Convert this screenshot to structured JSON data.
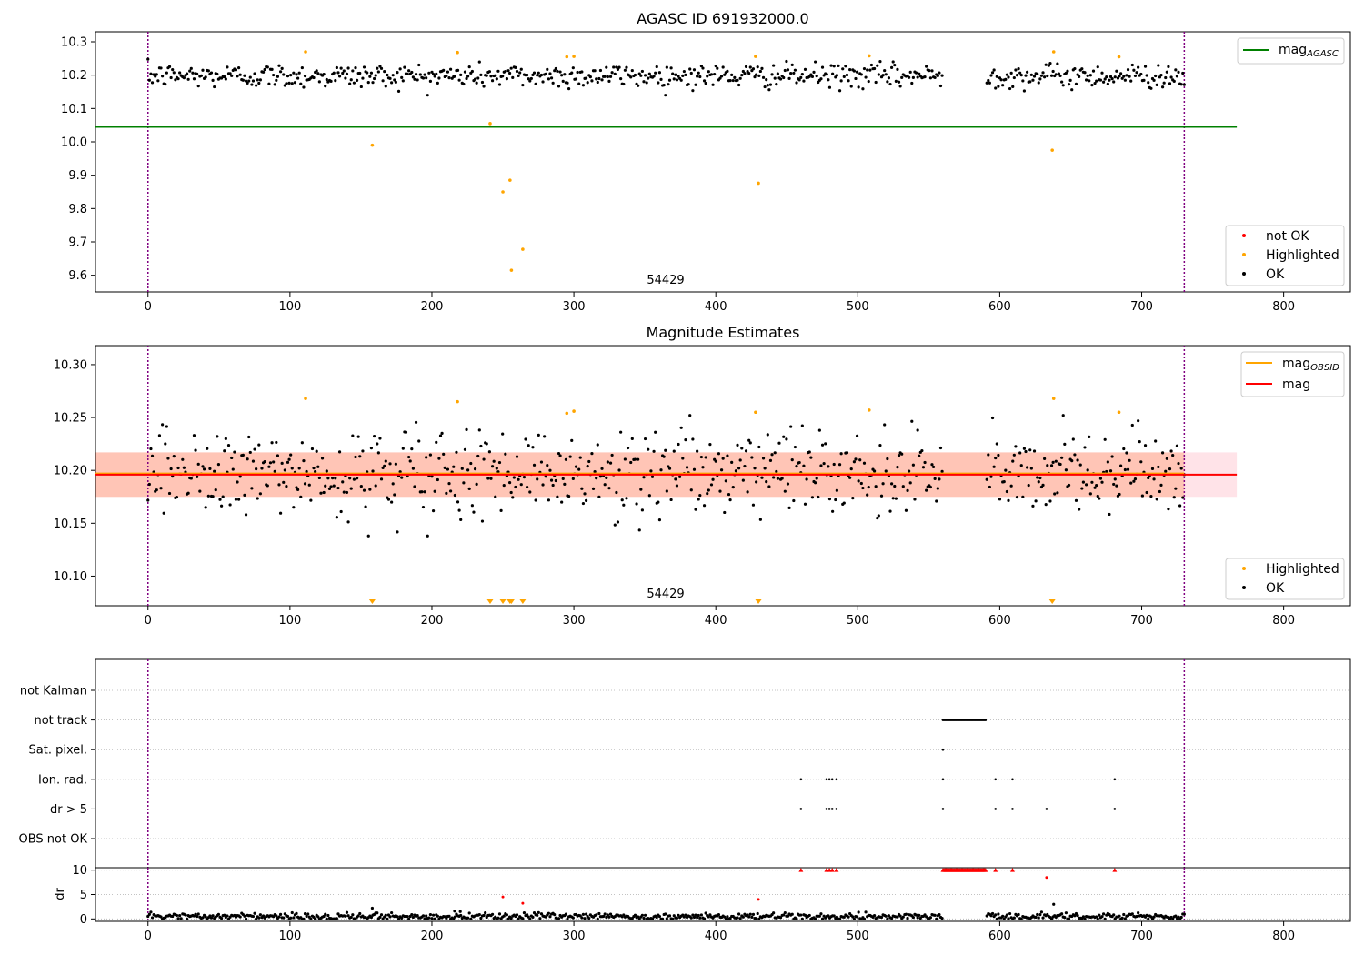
{
  "chart_data": [
    {
      "type": "scatter",
      "title": "AGASC ID 691932000.0",
      "annotation": "54429",
      "xlim": [
        -37,
        847
      ],
      "ylim": [
        9.55,
        10.33
      ],
      "x_ticks": [
        0,
        100,
        200,
        300,
        400,
        500,
        600,
        700,
        800
      ],
      "y_ticks": [
        9.6,
        9.7,
        9.8,
        9.9,
        10.0,
        10.1,
        10.2,
        10.3
      ],
      "y_tick_labels": [
        "9.6",
        "9.7",
        "9.8",
        "9.9",
        "10.0",
        "10.1",
        "10.2",
        "10.3"
      ],
      "vlines": [
        0,
        730
      ],
      "hline": {
        "name": "mag_AGASC",
        "value": 10.045,
        "x_range": [
          -37,
          767
        ],
        "color": "#008000"
      },
      "legend_lines": [
        {
          "name": "mag",
          "sub": "AGASC",
          "color": "#008000"
        }
      ],
      "legend_points": [
        {
          "name": "not OK",
          "color": "#ff0000"
        },
        {
          "name": "Highlighted",
          "color": "#ffa500"
        },
        {
          "name": "OK",
          "color": "#000000"
        }
      ],
      "ok_series": {
        "n": 720,
        "x_range": [
          0,
          730
        ],
        "center": 10.198,
        "spread": 0.018,
        "gap": [
          560,
          590
        ]
      },
      "highlighted": [
        {
          "x": 111,
          "y": 10.27
        },
        {
          "x": 158,
          "y": 9.99
        },
        {
          "x": 218,
          "y": 10.268
        },
        {
          "x": 241,
          "y": 10.055
        },
        {
          "x": 250,
          "y": 9.85
        },
        {
          "x": 255,
          "y": 9.885
        },
        {
          "x": 256,
          "y": 9.615
        },
        {
          "x": 264,
          "y": 9.678
        },
        {
          "x": 295,
          "y": 10.255
        },
        {
          "x": 300,
          "y": 10.256
        },
        {
          "x": 428,
          "y": 10.256
        },
        {
          "x": 430,
          "y": 9.876
        },
        {
          "x": 508,
          "y": 10.258
        },
        {
          "x": 637,
          "y": 9.975
        },
        {
          "x": 638,
          "y": 10.27
        },
        {
          "x": 684,
          "y": 10.255
        }
      ]
    },
    {
      "type": "scatter",
      "title": "Magnitude Estimates",
      "annotation": "54429",
      "xlim": [
        -37,
        847
      ],
      "ylim": [
        10.072,
        10.318
      ],
      "x_ticks": [
        0,
        100,
        200,
        300,
        400,
        500,
        600,
        700,
        800
      ],
      "y_ticks": [
        10.1,
        10.15,
        10.2,
        10.25,
        10.3
      ],
      "y_tick_labels": [
        "10.10",
        "10.15",
        "10.20",
        "10.25",
        "10.30"
      ],
      "vlines": [
        0,
        730
      ],
      "mag_line": {
        "name": "mag",
        "value": 10.196,
        "x_range": [
          -37,
          767
        ],
        "color": "#ff0000"
      },
      "mag_obsid_band": {
        "low": 10.175,
        "high": 10.217,
        "x_range": [
          -37,
          730
        ],
        "color": "#ffa07a"
      },
      "mag_band": {
        "low": 10.175,
        "high": 10.217,
        "x_range": [
          -37,
          767
        ],
        "color": "#ffc0cb"
      },
      "mag_obsid_line": {
        "name": "mag_OBSID",
        "value": 10.197,
        "x_range": [
          -37,
          730
        ],
        "color": "#ffa500"
      },
      "legend_lines": [
        {
          "name": "mag",
          "sub": "OBSID",
          "color": "#ffa500"
        },
        {
          "name": "mag",
          "sub": "",
          "color": "#ff0000"
        }
      ],
      "legend_points": [
        {
          "name": "Highlighted",
          "color": "#ffa500"
        },
        {
          "name": "OK",
          "color": "#000000"
        }
      ],
      "ok_series": {
        "n": 720,
        "x_range": [
          0,
          730
        ],
        "center": 10.197,
        "spread": 0.02,
        "gap": [
          560,
          590
        ]
      },
      "highlighted": [
        {
          "x": 111,
          "y": 10.268
        },
        {
          "x": 218,
          "y": 10.265
        },
        {
          "x": 295,
          "y": 10.254
        },
        {
          "x": 300,
          "y": 10.256
        },
        {
          "x": 428,
          "y": 10.255
        },
        {
          "x": 508,
          "y": 10.257
        },
        {
          "x": 638,
          "y": 10.268
        },
        {
          "x": 684,
          "y": 10.255
        }
      ],
      "out_of_range_markers": [
        158,
        241,
        250,
        255,
        256,
        264,
        430,
        637
      ]
    },
    {
      "type": "scatter",
      "title": "",
      "xlim": [
        -37,
        847
      ],
      "x_ticks": [
        0,
        100,
        200,
        300,
        400,
        500,
        600,
        700,
        800
      ],
      "vlines": [
        0,
        730
      ],
      "flag_categories": [
        "not Kalman",
        "not track",
        "Sat. pixel.",
        "Ion. rad.",
        "dr > 5",
        "OBS not OK"
      ],
      "flags": {
        "not track": {
          "range": [
            560,
            590
          ],
          "n": 32
        },
        "Sat. pixel.": [
          560
        ],
        "Ion. rad.": [
          460,
          478,
          480,
          482,
          485,
          560,
          597,
          609,
          681
        ],
        "dr > 5": [
          460,
          478,
          480,
          482,
          485,
          560,
          597,
          609,
          633,
          681
        ]
      }
    },
    {
      "type": "scatter",
      "ylabel": "dr",
      "xlim": [
        -37,
        847
      ],
      "ylim": [
        -0.5,
        10.5
      ],
      "x_ticks": [
        0,
        100,
        200,
        300,
        400,
        500,
        600,
        700,
        800
      ],
      "y_ticks": [
        0,
        5,
        10
      ],
      "y_tick_labels": [
        "0",
        "5",
        "10"
      ],
      "vlines": [
        0,
        730
      ],
      "ok_series": {
        "n": 720,
        "x_range": [
          0,
          730
        ],
        "center": 0.5,
        "spread": 0.35,
        "gap": [
          560,
          590
        ]
      },
      "ok_extra": [
        {
          "x": 158,
          "y": 2.2
        },
        {
          "x": 216,
          "y": 1.6
        },
        {
          "x": 220,
          "y": 1.5
        },
        {
          "x": 638,
          "y": 3.0
        }
      ],
      "clipped_red": {
        "value": 10,
        "x": [
          460,
          478,
          480,
          482,
          485,
          597,
          609,
          681
        ],
        "range": [
          560,
          590
        ],
        "n_range": 40
      },
      "red_points": [
        {
          "x": 250,
          "y": 4.5
        },
        {
          "x": 264,
          "y": 3.2
        },
        {
          "x": 430,
          "y": 4.0
        },
        {
          "x": 633,
          "y": 8.5
        }
      ]
    }
  ]
}
